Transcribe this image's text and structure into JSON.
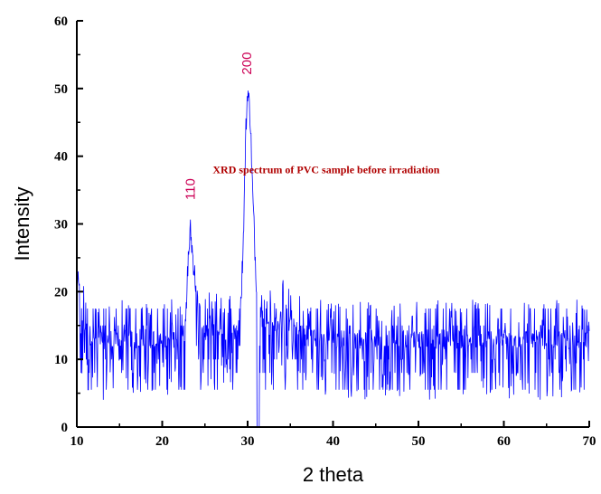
{
  "chart_data": {
    "type": "line",
    "title": "",
    "xlabel": "2 theta",
    "ylabel": "Intensity",
    "xlim": [
      10,
      70
    ],
    "ylim": [
      0,
      60
    ],
    "x_ticks": [
      10,
      20,
      30,
      40,
      50,
      60,
      70
    ],
    "y_ticks": [
      0,
      10,
      20,
      30,
      40,
      50,
      60
    ],
    "grid": false,
    "line_color": "#0000ff",
    "annotations": [
      {
        "text": "XRD spectrum of PVC sample before irradiation",
        "x": 39.2,
        "y": 38,
        "color": "#b00000"
      }
    ],
    "peaks": [
      {
        "label": "110",
        "x": 23.3,
        "y": 33,
        "color": "#cc0055"
      },
      {
        "label": "200",
        "x": 29.9,
        "y": 51.5,
        "color": "#cc0055"
      }
    ],
    "profile": {
      "x": [
        10,
        10.3,
        10.6,
        11.2,
        12,
        14,
        16,
        18,
        20,
        21.5,
        22.3,
        22.8,
        23.0,
        23.3,
        23.6,
        24.0,
        24.5,
        25,
        26,
        27,
        28,
        28.8,
        29.2,
        29.5,
        29.8,
        30.0,
        30.3,
        30.6,
        31.0,
        31.5,
        32,
        33,
        34,
        35,
        36,
        38,
        40,
        45,
        50,
        55,
        60,
        65,
        70
      ],
      "y": [
        22,
        20,
        16,
        14,
        13,
        13,
        13,
        13,
        13,
        13,
        14,
        17,
        24,
        29,
        25,
        20,
        16,
        14,
        14,
        14,
        14,
        14,
        18,
        28,
        44,
        50,
        46,
        34,
        22,
        17,
        15,
        15,
        16,
        15,
        14,
        13,
        13,
        13,
        13,
        13,
        13,
        13,
        13
      ]
    }
  }
}
